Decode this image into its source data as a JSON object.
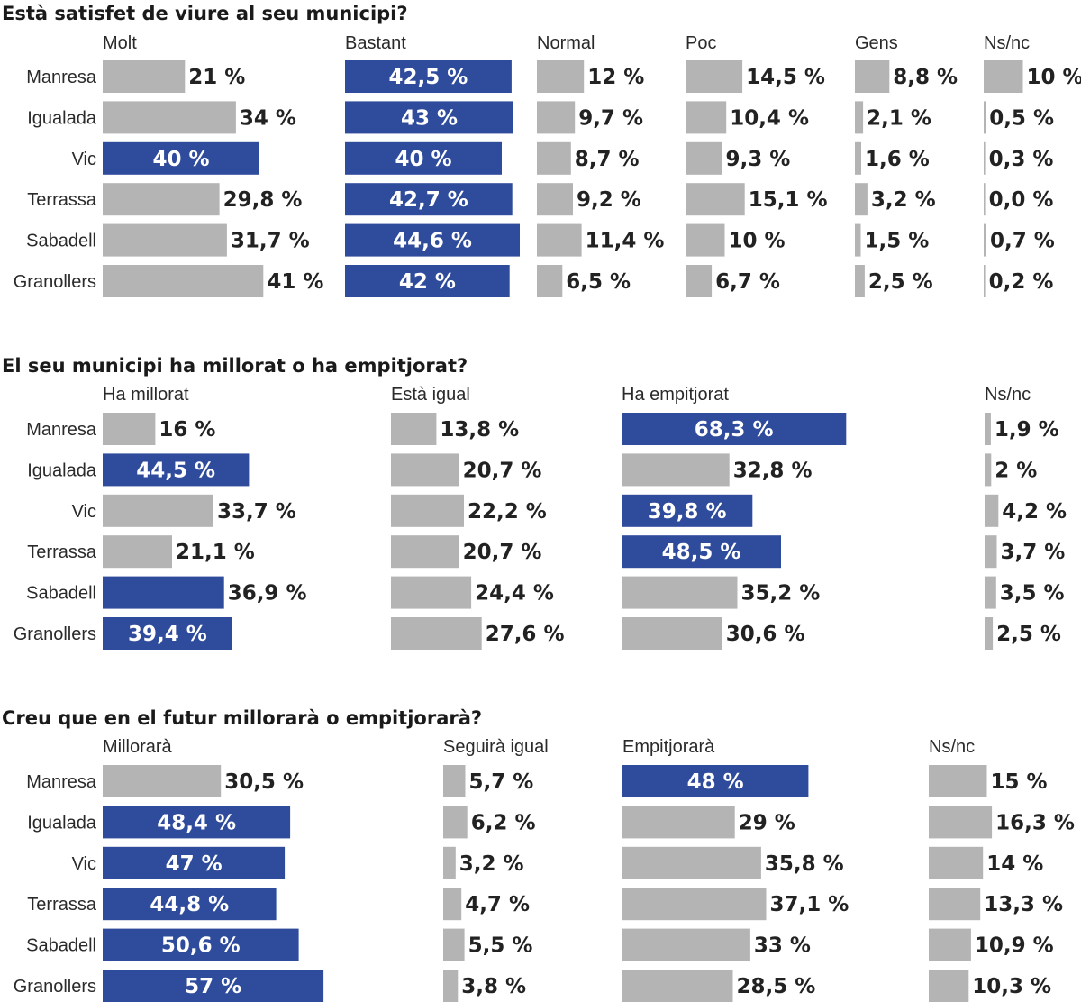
{
  "colors": {
    "highlight": "#2f4b9c",
    "neutral": "#b4b4b4",
    "text": "#222222",
    "white": "#ffffff"
  },
  "chart_data": [
    {
      "type": "bar",
      "title": "Està satisfet de viure al seu municipi?",
      "categories": [
        "Manresa",
        "Igualada",
        "Vic",
        "Terrassa",
        "Sabadell",
        "Granollers"
      ],
      "series": [
        {
          "name": "Molt",
          "values": [
            21,
            34,
            40,
            29.8,
            31.7,
            41
          ],
          "labels": [
            "21 %",
            "34 %",
            "40 %",
            "29,8 %",
            "31,7 %",
            "41 %"
          ],
          "highlight": [
            false,
            false,
            true,
            false,
            false,
            false
          ]
        },
        {
          "name": "Bastant",
          "values": [
            42.5,
            43,
            40,
            42.7,
            44.6,
            42
          ],
          "labels": [
            "42,5 %",
            "43 %",
            "40 %",
            "42,7 %",
            "44,6 %",
            "42 %"
          ],
          "highlight": [
            true,
            true,
            true,
            true,
            true,
            true
          ]
        },
        {
          "name": "Normal",
          "values": [
            12,
            9.7,
            8.7,
            9.2,
            11.4,
            6.5
          ],
          "labels": [
            "12 %",
            "9,7 %",
            "8,7 %",
            "9,2 %",
            "11,4 %",
            "6,5 %"
          ],
          "highlight": [
            false,
            false,
            false,
            false,
            false,
            false
          ]
        },
        {
          "name": "Poc",
          "values": [
            14.5,
            10.4,
            9.3,
            15.1,
            10,
            6.7
          ],
          "labels": [
            "14,5 %",
            "10,4 %",
            "9,3 %",
            "15,1 %",
            "10 %",
            "6,7 %"
          ],
          "highlight": [
            false,
            false,
            false,
            false,
            false,
            false
          ]
        },
        {
          "name": "Gens",
          "values": [
            8.8,
            2.1,
            1.6,
            3.2,
            1.5,
            2.5
          ],
          "labels": [
            "8,8 %",
            "2,1 %",
            "1,6 %",
            "3,2 %",
            "1,5 %",
            "2,5 %"
          ],
          "highlight": [
            false,
            false,
            false,
            false,
            false,
            false
          ]
        },
        {
          "name": "Ns/nc",
          "values": [
            10,
            0.5,
            0.3,
            0.0,
            0.7,
            0.2
          ],
          "labels": [
            "10 %",
            "0,5 %",
            "0,3 %",
            "0,0 %",
            "0,7 %",
            "0,2 %"
          ],
          "highlight": [
            false,
            false,
            false,
            false,
            false,
            false
          ]
        }
      ]
    },
    {
      "type": "bar",
      "title": "El seu municipi ha millorat o ha empitjorat?",
      "categories": [
        "Manresa",
        "Igualada",
        "Vic",
        "Terrassa",
        "Sabadell",
        "Granollers"
      ],
      "series": [
        {
          "name": "Ha millorat",
          "values": [
            16,
            44.5,
            33.7,
            21.1,
            36.9,
            39.4
          ],
          "labels": [
            "16 %",
            "44,5 %",
            "33,7 %",
            "21,1 %",
            "36,9 %",
            "39,4 %"
          ],
          "highlight": [
            false,
            true,
            false,
            false,
            true,
            true
          ]
        },
        {
          "name": "Està igual",
          "values": [
            13.8,
            20.7,
            22.2,
            20.7,
            24.4,
            27.6
          ],
          "labels": [
            "13,8 %",
            "20,7 %",
            "22,2 %",
            "20,7 %",
            "24,4 %",
            "27,6 %"
          ],
          "highlight": [
            false,
            false,
            false,
            false,
            false,
            false
          ]
        },
        {
          "name": "Ha empitjorat",
          "values": [
            68.3,
            32.8,
            39.8,
            48.5,
            35.2,
            30.6
          ],
          "labels": [
            "68,3 %",
            "32,8 %",
            "39,8 %",
            "48,5 %",
            "35,2 %",
            "30,6 %"
          ],
          "highlight": [
            true,
            false,
            true,
            true,
            false,
            false
          ]
        },
        {
          "name": "Ns/nc",
          "values": [
            1.9,
            2,
            4.2,
            3.7,
            3.5,
            2.5
          ],
          "labels": [
            "1,9 %",
            "2 %",
            "4,2 %",
            "3,7 %",
            "3,5 %",
            "2,5 %"
          ],
          "highlight": [
            false,
            false,
            false,
            false,
            false,
            false
          ]
        }
      ]
    },
    {
      "type": "bar",
      "title": "Creu que en el futur millorarà o empitjorarà?",
      "categories": [
        "Manresa",
        "Igualada",
        "Vic",
        "Terrassa",
        "Sabadell",
        "Granollers"
      ],
      "series": [
        {
          "name": "Millorarà",
          "values": [
            30.5,
            48.4,
            47,
            44.8,
            50.6,
            57
          ],
          "labels": [
            "30,5 %",
            "48,4 %",
            "47 %",
            "44,8 %",
            "50,6 %",
            "57 %"
          ],
          "highlight": [
            false,
            true,
            true,
            true,
            true,
            true
          ]
        },
        {
          "name": "Seguirà igual",
          "values": [
            5.7,
            6.2,
            3.2,
            4.7,
            5.5,
            3.8
          ],
          "labels": [
            "5,7 %",
            "6,2 %",
            "3,2 %",
            "4,7 %",
            "5,5 %",
            "3,8 %"
          ],
          "highlight": [
            false,
            false,
            false,
            false,
            false,
            false
          ]
        },
        {
          "name": "Empitjorarà",
          "values": [
            48,
            29,
            35.8,
            37.1,
            33,
            28.5
          ],
          "labels": [
            "48 %",
            "29 %",
            "35,8 %",
            "37,1 %",
            "33 %",
            "28,5 %"
          ],
          "highlight": [
            true,
            false,
            false,
            false,
            false,
            false
          ]
        },
        {
          "name": "Ns/nc",
          "values": [
            15,
            16.3,
            14,
            13.3,
            10.9,
            10.3
          ],
          "labels": [
            "15 %",
            "16,3 %",
            "14 %",
            "13,3 %",
            "10,9 %",
            "10,3 %"
          ],
          "highlight": [
            false,
            false,
            false,
            false,
            false,
            false
          ]
        }
      ]
    }
  ]
}
